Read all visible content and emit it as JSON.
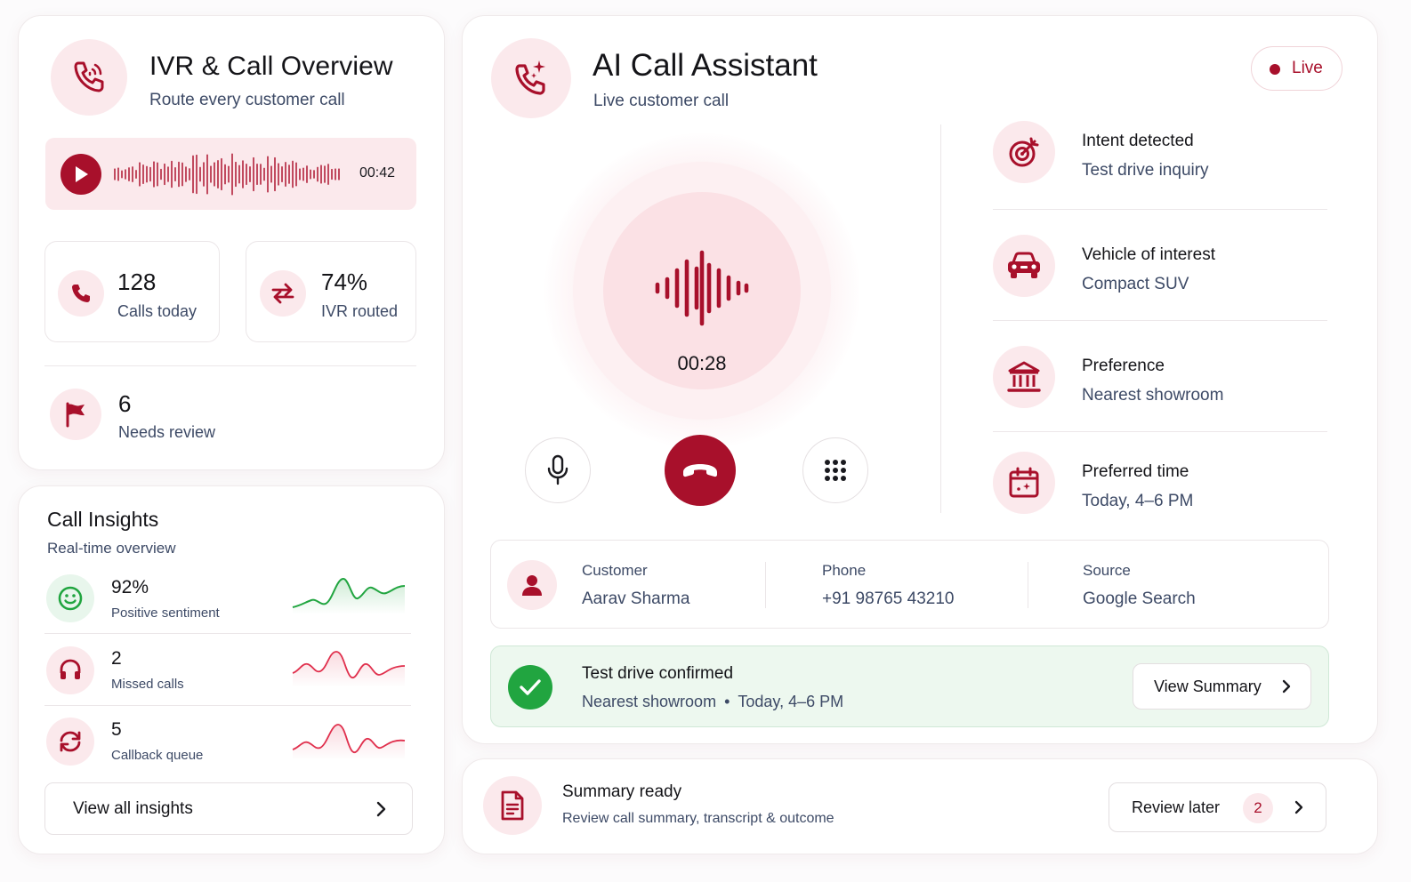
{
  "ivr": {
    "title": "IVR & Call Overview",
    "subtitle": "Route every customer call",
    "recording_time": "00:42",
    "stats": [
      {
        "value": "128",
        "label": "Calls today"
      },
      {
        "value": "74%",
        "label": "IVR routed"
      }
    ],
    "review": {
      "value": "6",
      "label": "Needs review"
    }
  },
  "insights": {
    "title": "Call Insights",
    "subtitle": "Real-time overview",
    "items": [
      {
        "value": "92%",
        "label": "Positive sentiment"
      },
      {
        "value": "2",
        "label": "Missed calls"
      },
      {
        "value": "5",
        "label": "Callback queue"
      }
    ],
    "view_all_label": "View all insights"
  },
  "assistant": {
    "title": "AI Call Assistant",
    "subtitle": "Live customer call",
    "live_label": "Live",
    "call_timer": "00:28",
    "details": [
      {
        "title": "Intent detected",
        "value": "Test drive inquiry"
      },
      {
        "title": "Vehicle of interest",
        "value": "Compact SUV"
      },
      {
        "title": "Preference",
        "value": "Nearest showroom"
      },
      {
        "title": "Preferred time",
        "value": "Today, 4–6 PM"
      }
    ],
    "customer": {
      "customer_label": "Customer",
      "customer_name": "Aarav Sharma",
      "phone_label": "Phone",
      "phone_value": "+91 98765 43210",
      "source_label": "Source",
      "source_value": "Google Search"
    },
    "confirmation": {
      "title": "Test drive confirmed",
      "location": "Nearest showroom",
      "separator": "•",
      "time": "Today, 4–6 PM",
      "button_label": "View Summary"
    }
  },
  "summary": {
    "title": "Summary ready",
    "subtitle": "Review call summary, transcript & outcome",
    "button_label": "Review later",
    "badge_count": "2"
  },
  "colors": {
    "accent": "#a8102b",
    "accent_soft": "#fbe9ec",
    "success": "#21a540",
    "success_soft": "#edf8ef",
    "text_muted": "#3d4a66"
  },
  "icons": {
    "ivr": "phone-signal-icon",
    "play": "play-icon",
    "calls": "phone-icon",
    "routed": "arrows-exchange-icon",
    "review": "flag-icon",
    "sentiment": "smile-icon",
    "missed": "headset-icon",
    "callback": "refresh-icon",
    "assistant": "phone-sparkle-icon",
    "intent": "target-icon",
    "vehicle": "car-icon",
    "preference": "bank-icon",
    "time": "calendar-icon",
    "customer": "user-icon",
    "confirmed": "check-icon",
    "summary": "document-icon",
    "mic": "microphone-icon",
    "end_call": "end-call-icon",
    "keypad": "keypad-icon",
    "chevron": "chevron-right-icon"
  }
}
